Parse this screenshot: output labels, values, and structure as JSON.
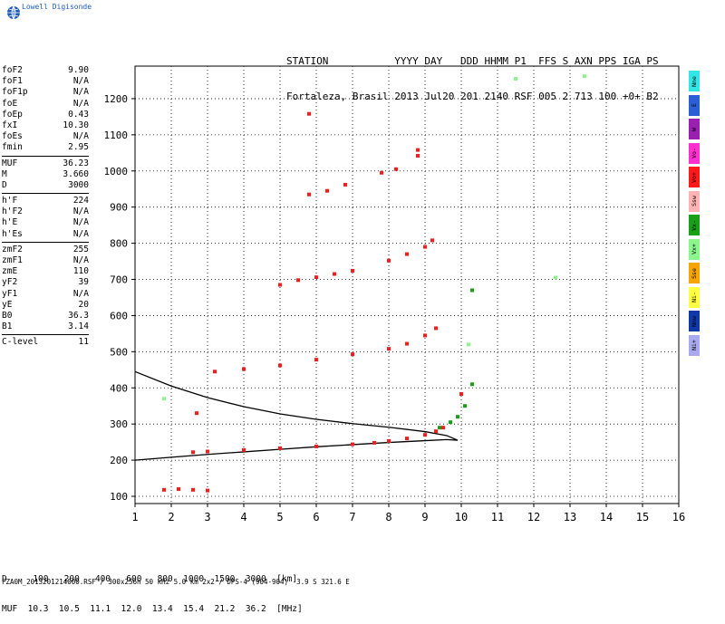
{
  "brand": "Lowell Digisonde",
  "header": {
    "line1": "STATION           YYYY DAY   DDD HHMM P1  FFS S AXN PPS IGA PS",
    "line2": "Fortaleza, Brasil 2013 Jul20 201 2140 RSF 005 2 713 100 +0+ B2"
  },
  "params": [
    [
      {
        "label": "foF2",
        "value": "9.90"
      },
      {
        "label": "foF1",
        "value": "N/A"
      },
      {
        "label": "foF1p",
        "value": "N/A"
      },
      {
        "label": "foE",
        "value": "N/A"
      },
      {
        "label": "foEp",
        "value": "0.43"
      },
      {
        "label": "fxI",
        "value": "10.30"
      },
      {
        "label": "foEs",
        "value": "N/A"
      },
      {
        "label": "fmin",
        "value": "2.95"
      }
    ],
    [
      {
        "label": "MUF",
        "value": "36.23"
      },
      {
        "label": "M",
        "value": "3.660"
      },
      {
        "label": "D",
        "value": "3000"
      }
    ],
    [
      {
        "label": "h'F",
        "value": "224"
      },
      {
        "label": "h'F2",
        "value": "N/A"
      },
      {
        "label": "h'E",
        "value": "N/A"
      },
      {
        "label": "h'Es",
        "value": "N/A"
      }
    ],
    [
      {
        "label": "zmF2",
        "value": "255"
      },
      {
        "label": "zmF1",
        "value": "N/A"
      },
      {
        "label": "zmE",
        "value": "110"
      },
      {
        "label": "yF2",
        "value": "39"
      },
      {
        "label": "yF1",
        "value": "N/A"
      },
      {
        "label": "yE",
        "value": "20"
      },
      {
        "label": "B0",
        "value": "36.3"
      },
      {
        "label": "B1",
        "value": "3.14"
      }
    ],
    [
      {
        "label": "C-level",
        "value": "11"
      }
    ]
  ],
  "legend": [
    {
      "label": "Nne",
      "color": "#33e6e6"
    },
    {
      "label": "E",
      "color": "#2a5fd6"
    },
    {
      "label": "W",
      "color": "#9b1fb0"
    },
    {
      "label": "Vo-",
      "color": "#ff2fd0"
    },
    {
      "label": "Vo+",
      "color": "#ff1a1a"
    },
    {
      "label": "Ssw",
      "color": "#ffb3b3"
    },
    {
      "label": "Vx-",
      "color": "#18a018"
    },
    {
      "label": "Vx+",
      "color": "#8cf58c"
    },
    {
      "label": "Sse",
      "color": "#f5a400"
    },
    {
      "label": "Ni-",
      "color": "#ffff44"
    },
    {
      "label": "Nnw",
      "color": "#1038a8"
    },
    {
      "label": "Ni+",
      "color": "#a9a9f0"
    }
  ],
  "distance_table": {
    "line1": "D     100   200   400   600   800  1000  1500  3000  [km]",
    "line2": "MUF  10.3  10.5  11.1  12.0  13.4  15.4  21.2  36.2  [MHz]"
  },
  "footer": "FZA0M_2013201214000.RSF / 300x256h 50 kHz 5.0 km 2x2 / DPS-4 (904-904)  3.9 S 321.6 E",
  "chart_data": {
    "type": "scatter",
    "xlim": [
      1,
      16
    ],
    "ylim": [
      80,
      1290
    ],
    "xticks": [
      1,
      2,
      3,
      4,
      5,
      6,
      7,
      8,
      9,
      10,
      11,
      12,
      13,
      14,
      15,
      16
    ],
    "yticks": [
      100,
      200,
      300,
      400,
      500,
      600,
      700,
      800,
      900,
      1000,
      1100,
      1200
    ],
    "grid": true,
    "series": [
      {
        "color": "#ff1a1a",
        "points": [
          [
            2.6,
            222
          ],
          [
            3.0,
            224
          ],
          [
            4.0,
            228
          ],
          [
            5.0,
            233
          ],
          [
            6.0,
            238
          ],
          [
            7.0,
            244
          ],
          [
            7.6,
            248
          ],
          [
            8.0,
            253
          ],
          [
            8.5,
            260
          ],
          [
            9.0,
            270
          ],
          [
            9.3,
            280
          ],
          [
            9.5,
            290
          ]
        ]
      },
      {
        "color": "#ff1a1a",
        "points": [
          [
            3.2,
            445
          ],
          [
            4.0,
            452
          ],
          [
            5.0,
            462
          ],
          [
            6.0,
            478
          ],
          [
            7.0,
            493
          ],
          [
            8.0,
            508
          ],
          [
            8.5,
            522
          ],
          [
            9.0,
            545
          ],
          [
            9.3,
            565
          ]
        ]
      },
      {
        "color": "#ff1a1a",
        "points": [
          [
            5.0,
            685
          ],
          [
            5.5,
            698
          ],
          [
            6.0,
            706
          ],
          [
            6.5,
            715
          ],
          [
            7.0,
            724
          ],
          [
            8.0,
            752
          ],
          [
            8.5,
            770
          ],
          [
            9.0,
            790
          ],
          [
            9.2,
            808
          ]
        ]
      },
      {
        "color": "#ff1a1a",
        "points": [
          [
            6.3,
            945
          ],
          [
            6.8,
            962
          ],
          [
            7.8,
            995
          ],
          [
            8.2,
            1005
          ],
          [
            8.8,
            1042
          ]
        ]
      },
      {
        "color": "#ff1a1a",
        "points": [
          [
            1.8,
            118
          ],
          [
            2.2,
            120
          ],
          [
            2.6,
            118
          ],
          [
            3.0,
            116
          ]
        ]
      },
      {
        "color": "#18a018",
        "points": [
          [
            9.4,
            290
          ],
          [
            9.7,
            305
          ],
          [
            9.9,
            320
          ],
          [
            10.1,
            350
          ],
          [
            10.3,
            410
          ],
          [
            10.3,
            670
          ]
        ]
      },
      {
        "color": "#ff1a1a",
        "points": [
          [
            5.8,
            1158
          ],
          [
            5.8,
            935
          ],
          [
            2.7,
            330
          ],
          [
            10.0,
            383
          ],
          [
            8.8,
            1058
          ]
        ]
      },
      {
        "color": "#8cf58c",
        "points": [
          [
            11.5,
            1255
          ],
          [
            13.4,
            1262
          ],
          [
            12.6,
            705
          ],
          [
            1.8,
            370
          ],
          [
            10.2,
            520
          ]
        ]
      }
    ],
    "curves": [
      {
        "name": "",
        "points": [
          [
            1.0,
            200
          ],
          [
            2.0,
            208
          ],
          [
            3.0,
            216
          ],
          [
            4.0,
            223
          ],
          [
            5.0,
            230
          ],
          [
            6.0,
            237
          ],
          [
            7.0,
            243
          ],
          [
            8.0,
            249
          ],
          [
            9.0,
            254
          ],
          [
            9.6,
            257
          ],
          [
            9.9,
            255
          ],
          [
            9.9,
            255
          ],
          [
            9.6,
            268
          ],
          [
            9.0,
            279
          ],
          [
            8.0,
            291
          ],
          [
            7.0,
            301
          ],
          [
            6.0,
            313
          ],
          [
            5.0,
            328
          ],
          [
            4.0,
            348
          ],
          [
            3.0,
            373
          ],
          [
            2.0,
            405
          ],
          [
            1.0,
            445
          ]
        ]
      }
    ]
  }
}
